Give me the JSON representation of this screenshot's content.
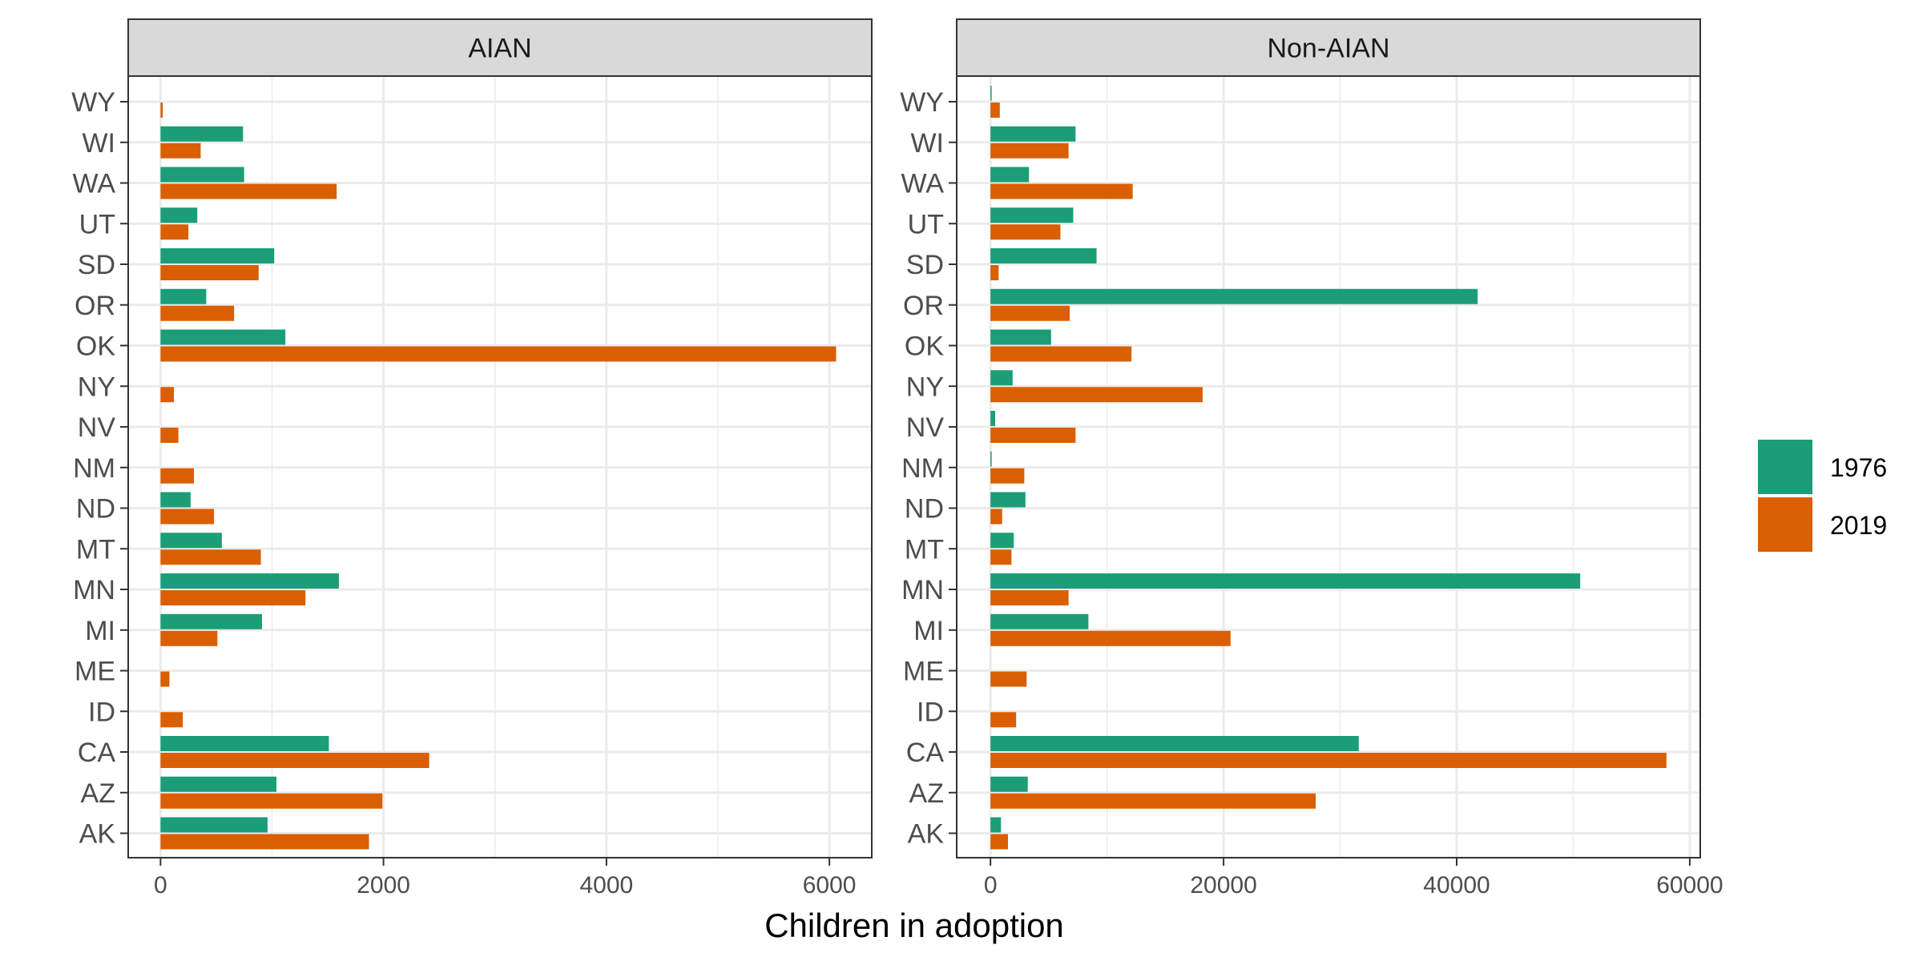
{
  "chart_data": {
    "type": "bar",
    "orientation": "horizontal",
    "xlabel": "Children in adoption",
    "ylabel": "",
    "grid": true,
    "legend": {
      "position": "right",
      "entries": [
        "1976",
        "2019"
      ]
    },
    "colors": {
      "1976": "#1b9e77",
      "2019": "#d95f02",
      "strip": "#d9d9d9",
      "grid": "#ebebeb"
    },
    "categories": [
      "WY",
      "WI",
      "WA",
      "UT",
      "SD",
      "OR",
      "OK",
      "NY",
      "NV",
      "NM",
      "ND",
      "MT",
      "MN",
      "MI",
      "ME",
      "ID",
      "CA",
      "AZ",
      "AK"
    ],
    "panels": [
      {
        "title": "AIAN",
        "xlim": [
          -290,
          6380
        ],
        "xticks": [
          0,
          2000,
          4000,
          6000
        ],
        "xtick_labels": [
          "0",
          "2000",
          "4000",
          "6000"
        ],
        "series": [
          {
            "name": "1976",
            "values": [
              0,
              740,
              750,
              330,
              1020,
              410,
              1120,
              0,
              0,
              0,
              270,
              550,
              1600,
              910,
              0,
              0,
              1510,
              1040,
              960
            ]
          },
          {
            "name": "2019",
            "values": [
              20,
              360,
              1580,
              250,
              880,
              660,
              6060,
              120,
              160,
              300,
              480,
              900,
              1300,
              510,
              80,
              200,
              2410,
              1990,
              1870
            ]
          }
        ]
      },
      {
        "title": "Non-AIAN",
        "xlim": [
          -2900,
          60900
        ],
        "xticks": [
          0,
          20000,
          40000,
          60000
        ],
        "xtick_labels": [
          "0",
          "20000",
          "40000",
          "60000"
        ],
        "series": [
          {
            "name": "1976",
            "values": [
              100,
              7300,
              3300,
              7100,
              9100,
              41800,
              5200,
              1900,
              400,
              100,
              3000,
              2000,
              50600,
              8400,
              0,
              0,
              31600,
              3200,
              900
            ]
          },
          {
            "name": "2019",
            "values": [
              800,
              6700,
              12200,
              6000,
              700,
              6800,
              12100,
              18200,
              7300,
              2900,
              1000,
              1800,
              6700,
              20600,
              3100,
              2200,
              58000,
              27900,
              1500
            ]
          }
        ]
      }
    ]
  }
}
